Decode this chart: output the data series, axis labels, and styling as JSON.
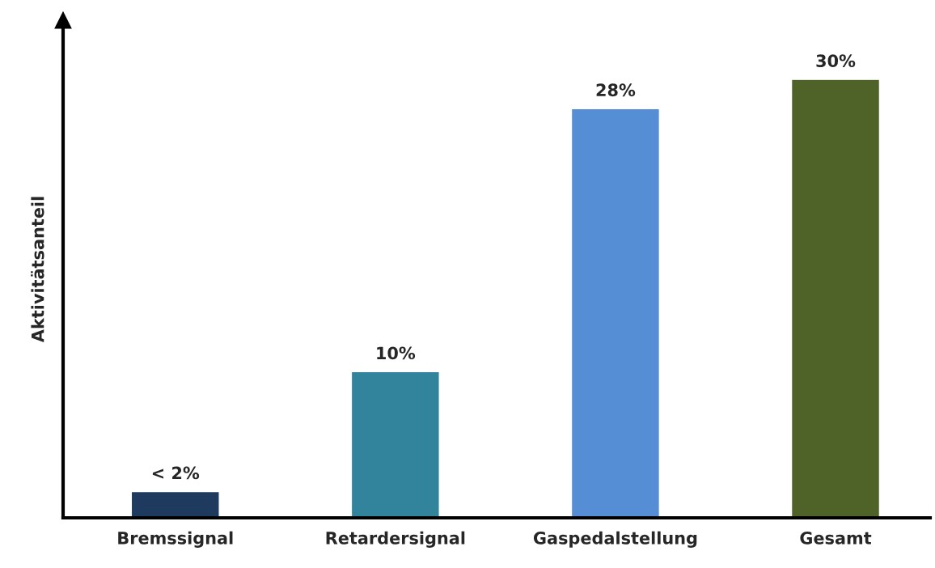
{
  "chart_data": {
    "type": "bar",
    "ylabel": "Aktivitätsanteil",
    "categories": [
      "Bremssignal",
      "Retardersignal",
      "Gaspedalstellung",
      "Gesamt"
    ],
    "values": [
      1.8,
      10,
      28,
      30
    ],
    "value_labels": [
      "< 2%",
      "10%",
      "28%",
      "30%"
    ],
    "colors": [
      "#1f3a5f",
      "#31849b",
      "#558ed5",
      "#4f6228"
    ],
    "grid": false,
    "legend": false
  }
}
